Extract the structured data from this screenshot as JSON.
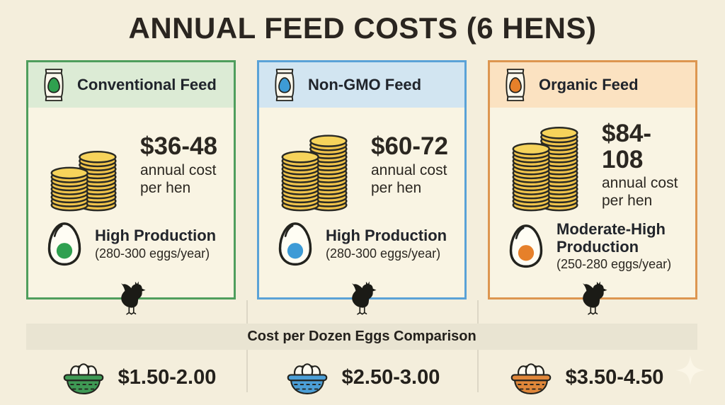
{
  "title": "ANNUAL FEED COSTS (6 HENS)",
  "cards": [
    {
      "label": "Conventional Feed",
      "accent": "#4f9e5d",
      "header_bg": "#dcebd5",
      "egg_color": "#2fa04f",
      "cost": "$36-48",
      "cost_caption": [
        "annual cost",
        "per hen"
      ],
      "production_title": "High Production",
      "production_detail": "(280-300 eggs/year)",
      "coins": [
        9,
        13
      ]
    },
    {
      "label": "Non-GMO Feed",
      "accent": "#5aa2d7",
      "header_bg": "#d2e5f1",
      "egg_color": "#3d9bd6",
      "cost": "$60-72",
      "cost_caption": [
        "annual cost",
        "per hen"
      ],
      "production_title": "High Production",
      "production_detail": "(280-300 eggs/year)",
      "coins": [
        13,
        17
      ]
    },
    {
      "label": "Organic Feed",
      "accent": "#dd9650",
      "header_bg": "#fbe2c1",
      "egg_color": "#e6802a",
      "cost": "$84-108",
      "cost_caption": [
        "annual cost",
        "per hen"
      ],
      "production_title": "Moderate-High Production",
      "production_detail": "(250-280 eggs/year)",
      "coins": [
        15,
        19
      ]
    }
  ],
  "comparison": {
    "title": "Cost per Dozen Eggs Comparison",
    "items": [
      {
        "price": "$1.50-2.00",
        "basket_color": "#3f9a55"
      },
      {
        "price": "$2.50-3.00",
        "basket_color": "#4c9fd7"
      },
      {
        "price": "$3.50-4.50",
        "basket_color": "#e0873a"
      }
    ]
  },
  "colors": {
    "background": "#f4eedc",
    "card_background": "#f9f4e3",
    "strip_background": "#e9e4d2",
    "coin_gold": "#f1c44b",
    "text_dark": "#28241e"
  }
}
